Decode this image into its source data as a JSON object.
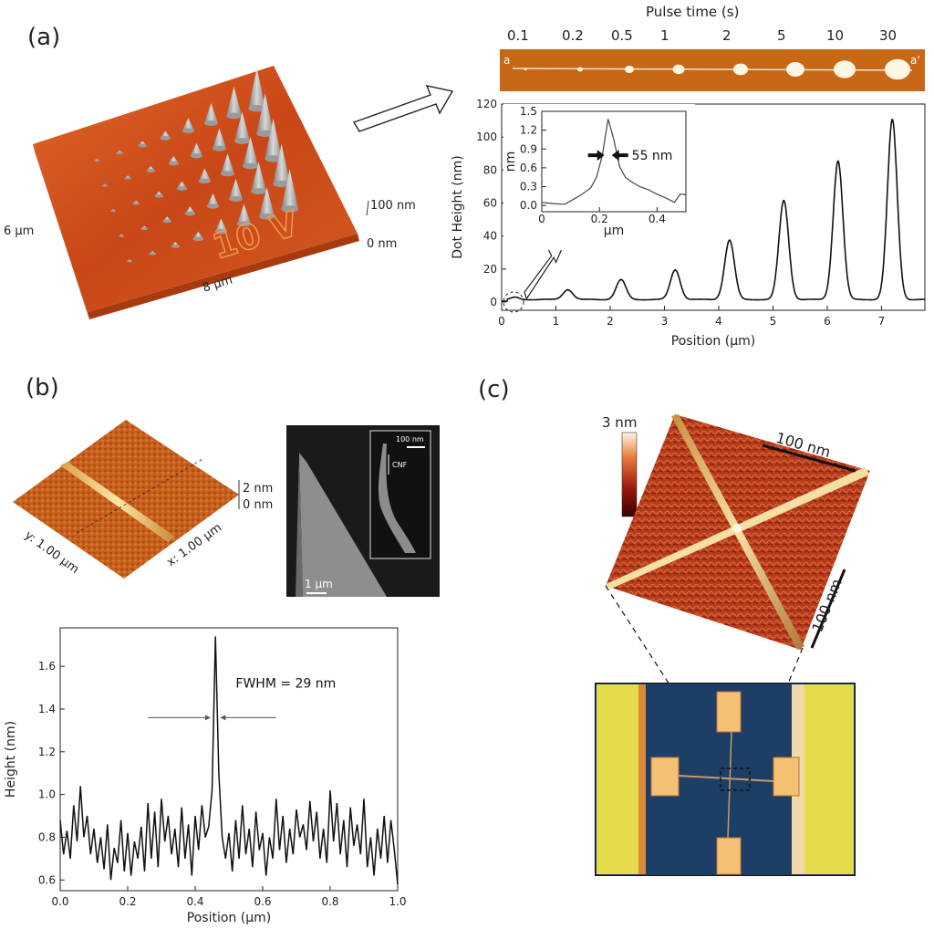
{
  "panels": {
    "a": "(a)",
    "b": "(b)",
    "c": "(c)"
  },
  "colors": {
    "afm_orange": "#d0501e",
    "afm_light": "#e8772f",
    "substrate_blue": "#1d3f66",
    "electrode_yellow": "#e4dc4a"
  },
  "panel_a": {
    "surface_height_max": "100 nm",
    "surface_height_min": "0 nm",
    "surface_y_size": "6 µm",
    "surface_x_size": "8 µm",
    "engraved_text": "10 V",
    "strip_title": "Pulse time (s)",
    "pulse_times": [
      "0.1",
      "0.2",
      "0.5",
      "1",
      "2",
      "5",
      "10",
      "30"
    ],
    "strip_left_marker": "a",
    "strip_right_marker": "a'"
  },
  "panel_b": {
    "surface_height_max": "2 nm",
    "surface_height_min": "0 nm",
    "surface_y_size": "y: 1.00 µm",
    "surface_x_size": "x: 1.00 µm",
    "sem_scale": "1 µm",
    "sem_inset_scale": "100 nm",
    "sem_inset_label": "CNF"
  },
  "panel_c": {
    "colorbar_max": "3 nm",
    "scale_top": "100 nm",
    "scale_right": "100 nm"
  },
  "chart_data": [
    {
      "id": "dot-height",
      "type": "line",
      "title": "",
      "xlabel": "Position (µm)",
      "ylabel": "Dot Height (nm)",
      "xlim": [
        0,
        7.8
      ],
      "ylim": [
        -5,
        120
      ],
      "xticks": [
        0,
        1,
        2,
        3,
        4,
        5,
        6,
        7
      ],
      "yticks": [
        0,
        20,
        40,
        60,
        80,
        100,
        120
      ],
      "peaks": [
        {
          "x": 0.25,
          "height": 1.4
        },
        {
          "x": 1.22,
          "height": 6
        },
        {
          "x": 2.2,
          "height": 12
        },
        {
          "x": 3.2,
          "height": 18
        },
        {
          "x": 4.2,
          "height": 36
        },
        {
          "x": 5.2,
          "height": 60
        },
        {
          "x": 6.2,
          "height": 84
        },
        {
          "x": 7.2,
          "height": 109
        }
      ]
    },
    {
      "id": "dot-height-inset",
      "type": "line",
      "xlabel": "µm",
      "ylabel": "nm",
      "xlim": [
        0,
        0.5
      ],
      "ylim": [
        -0.1,
        1.5
      ],
      "xticks": [
        0,
        0.2,
        0.4
      ],
      "yticks": [
        0.0,
        0.3,
        0.6,
        0.9,
        1.2,
        1.5
      ],
      "x": [
        0.0,
        0.04,
        0.08,
        0.11,
        0.14,
        0.17,
        0.19,
        0.21,
        0.23,
        0.25,
        0.27,
        0.29,
        0.31,
        0.34,
        0.37,
        0.4,
        0.43,
        0.46,
        0.48,
        0.5
      ],
      "y": [
        0.05,
        0.03,
        0.02,
        0.1,
        0.18,
        0.28,
        0.45,
        0.8,
        1.38,
        1.05,
        0.62,
        0.45,
        0.38,
        0.3,
        0.25,
        0.18,
        0.12,
        0.05,
        0.18,
        0.17
      ],
      "annotation": "55 nm"
    },
    {
      "id": "height-profile",
      "type": "line",
      "xlabel": "Position (µm)",
      "ylabel": "Height (nm)",
      "xlim": [
        0,
        1.0
      ],
      "ylim": [
        0.55,
        1.78
      ],
      "xticks": [
        0.0,
        0.2,
        0.4,
        0.6,
        0.8,
        1.0
      ],
      "yticks": [
        0.6,
        0.8,
        1.0,
        1.2,
        1.4,
        1.6
      ],
      "x": [
        0.0,
        0.01,
        0.02,
        0.03,
        0.04,
        0.05,
        0.06,
        0.07,
        0.08,
        0.09,
        0.1,
        0.11,
        0.12,
        0.13,
        0.14,
        0.15,
        0.16,
        0.17,
        0.18,
        0.19,
        0.2,
        0.21,
        0.22,
        0.23,
        0.24,
        0.25,
        0.26,
        0.27,
        0.28,
        0.29,
        0.3,
        0.31,
        0.32,
        0.33,
        0.34,
        0.35,
        0.36,
        0.37,
        0.38,
        0.39,
        0.4,
        0.41,
        0.42,
        0.43,
        0.44,
        0.45,
        0.46,
        0.47,
        0.48,
        0.49,
        0.5,
        0.51,
        0.52,
        0.53,
        0.54,
        0.55,
        0.56,
        0.57,
        0.58,
        0.59,
        0.6,
        0.61,
        0.62,
        0.63,
        0.64,
        0.65,
        0.66,
        0.67,
        0.68,
        0.69,
        0.7,
        0.71,
        0.72,
        0.73,
        0.74,
        0.75,
        0.76,
        0.77,
        0.78,
        0.79,
        0.8,
        0.81,
        0.82,
        0.83,
        0.84,
        0.85,
        0.86,
        0.87,
        0.88,
        0.89,
        0.9,
        0.91,
        0.92,
        0.93,
        0.94,
        0.95,
        0.96,
        0.97,
        0.98,
        0.99,
        1.0
      ],
      "y": [
        0.88,
        0.72,
        0.83,
        0.7,
        0.95,
        0.78,
        1.04,
        0.8,
        0.9,
        0.72,
        0.84,
        0.68,
        0.8,
        0.65,
        0.86,
        0.6,
        0.75,
        0.68,
        0.88,
        0.64,
        0.82,
        0.62,
        0.78,
        0.7,
        0.85,
        0.64,
        0.96,
        0.7,
        0.92,
        0.66,
        0.98,
        0.78,
        0.9,
        0.72,
        0.84,
        0.66,
        0.94,
        0.7,
        0.86,
        0.62,
        0.9,
        0.74,
        0.95,
        0.8,
        0.85,
        1.02,
        1.74,
        1.1,
        0.8,
        0.7,
        0.82,
        0.64,
        0.88,
        0.7,
        0.95,
        0.72,
        0.84,
        0.66,
        0.92,
        0.74,
        0.82,
        0.62,
        0.8,
        0.7,
        0.98,
        0.74,
        0.9,
        0.68,
        0.84,
        0.72,
        0.93,
        0.8,
        0.86,
        0.74,
        0.97,
        0.78,
        0.92,
        0.7,
        0.84,
        0.68,
        1.02,
        0.78,
        0.96,
        0.72,
        0.88,
        0.66,
        0.94,
        0.76,
        0.86,
        0.72,
        0.98,
        0.66,
        0.8,
        0.62,
        0.84,
        0.7,
        0.9,
        0.68,
        0.88,
        0.74,
        0.58
      ],
      "annotation": "FWHM = 29 nm"
    }
  ]
}
